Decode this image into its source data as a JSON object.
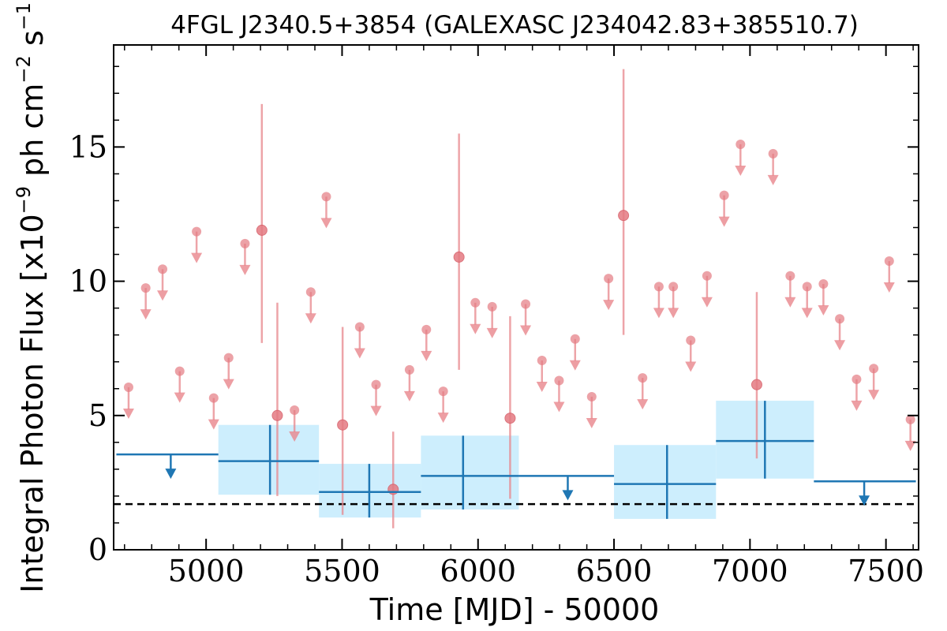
{
  "chart_data": {
    "type": "scatter",
    "title": "4FGL J2340.5+3854 (GALEXASC J234042.83+385510.7)",
    "xlabel": "Time [MJD] - 50000",
    "ylabel": "Integral Photon Flux [x10",
    "ylabel_exp1": "−9",
    "ylabel_mid": " ph cm",
    "ylabel_exp2": "−2",
    "ylabel_mid2": " s",
    "ylabel_exp3": "−1",
    "ylabel_end": "]",
    "xlim": [
      4660,
      7620
    ],
    "ylim": [
      0,
      18.8
    ],
    "xticks": [
      5000,
      5500,
      6000,
      6500,
      7000,
      7500
    ],
    "yticks": [
      0,
      5,
      10,
      15
    ],
    "xtick_labels": [
      "5000",
      "5500",
      "6000",
      "6500",
      "7000",
      "7500"
    ],
    "ytick_labels": [
      "0",
      "5",
      "10",
      "15"
    ],
    "baseline": 1.7,
    "colors": {
      "fine": "#e8868c",
      "fine_fill": "#e47a82",
      "coarse": "#1f77b4",
      "band": "#cdeefd",
      "baseline": "#000000"
    },
    "fine_detections": [
      {
        "x": 5205,
        "y": 11.9,
        "ylo": 7.7,
        "yhi": 16.6
      },
      {
        "x": 5262,
        "y": 5.0,
        "ylo": 2.0,
        "yhi": 9.2
      },
      {
        "x": 5502,
        "y": 4.65,
        "ylo": 1.3,
        "yhi": 8.3
      },
      {
        "x": 5688,
        "y": 2.25,
        "ylo": 0.8,
        "yhi": 4.4
      },
      {
        "x": 5930,
        "y": 10.9,
        "ylo": 6.7,
        "yhi": 15.5
      },
      {
        "x": 6118,
        "y": 4.9,
        "ylo": 1.9,
        "yhi": 8.7
      },
      {
        "x": 6535,
        "y": 12.45,
        "ylo": 8.0,
        "yhi": 17.9
      },
      {
        "x": 7025,
        "y": 6.15,
        "ylo": 3.4,
        "yhi": 9.6
      }
    ],
    "fine_upper_limits": [
      {
        "x": 4715,
        "y": 6.05
      },
      {
        "x": 4778,
        "y": 9.75
      },
      {
        "x": 4840,
        "y": 10.45
      },
      {
        "x": 4903,
        "y": 6.65
      },
      {
        "x": 4965,
        "y": 11.85
      },
      {
        "x": 5028,
        "y": 5.65
      },
      {
        "x": 5083,
        "y": 7.15
      },
      {
        "x": 5143,
        "y": 11.4
      },
      {
        "x": 5325,
        "y": 5.2
      },
      {
        "x": 5385,
        "y": 9.6
      },
      {
        "x": 5442,
        "y": 13.15
      },
      {
        "x": 5565,
        "y": 8.3
      },
      {
        "x": 5625,
        "y": 6.15
      },
      {
        "x": 5748,
        "y": 6.7
      },
      {
        "x": 5810,
        "y": 8.2
      },
      {
        "x": 5872,
        "y": 5.9
      },
      {
        "x": 5990,
        "y": 9.2
      },
      {
        "x": 6052,
        "y": 9.05
      },
      {
        "x": 6175,
        "y": 9.15
      },
      {
        "x": 6235,
        "y": 7.05
      },
      {
        "x": 6298,
        "y": 6.3
      },
      {
        "x": 6357,
        "y": 7.85
      },
      {
        "x": 6418,
        "y": 5.7
      },
      {
        "x": 6480,
        "y": 10.1
      },
      {
        "x": 6605,
        "y": 6.4
      },
      {
        "x": 6665,
        "y": 9.8
      },
      {
        "x": 6718,
        "y": 9.8
      },
      {
        "x": 6782,
        "y": 7.8
      },
      {
        "x": 6842,
        "y": 10.2
      },
      {
        "x": 6905,
        "y": 13.2
      },
      {
        "x": 6965,
        "y": 15.1
      },
      {
        "x": 7085,
        "y": 14.75
      },
      {
        "x": 7148,
        "y": 10.2
      },
      {
        "x": 7210,
        "y": 9.8
      },
      {
        "x": 7270,
        "y": 9.9
      },
      {
        "x": 7330,
        "y": 8.6
      },
      {
        "x": 7392,
        "y": 6.35
      },
      {
        "x": 7455,
        "y": 6.75
      },
      {
        "x": 7512,
        "y": 10.75
      },
      {
        "x": 7590,
        "y": 4.85
      }
    ],
    "coarse_detections": [
      {
        "x0": 5045,
        "x1": 5415,
        "xc": 5235,
        "y": 3.3,
        "ylo": 2.05,
        "yhi": 4.65
      },
      {
        "x0": 5415,
        "x1": 5790,
        "xc": 5600,
        "y": 2.15,
        "ylo": 1.2,
        "yhi": 3.2
      },
      {
        "x0": 5790,
        "x1": 6150,
        "xc": 5945,
        "y": 2.75,
        "ylo": 1.5,
        "yhi": 4.25
      },
      {
        "x0": 6500,
        "x1": 6875,
        "xc": 6695,
        "y": 2.45,
        "ylo": 1.15,
        "yhi": 3.9
      },
      {
        "x0": 6875,
        "x1": 7235,
        "xc": 7055,
        "y": 4.05,
        "ylo": 2.65,
        "yhi": 5.55
      }
    ],
    "coarse_upper_limits": [
      {
        "x0": 4670,
        "x1": 5045,
        "xc": 4870,
        "y": 3.55
      },
      {
        "x0": 6150,
        "x1": 6500,
        "xc": 6330,
        "y": 2.75
      },
      {
        "x0": 7235,
        "x1": 7610,
        "xc": 7420,
        "y": 2.55
      }
    ]
  }
}
